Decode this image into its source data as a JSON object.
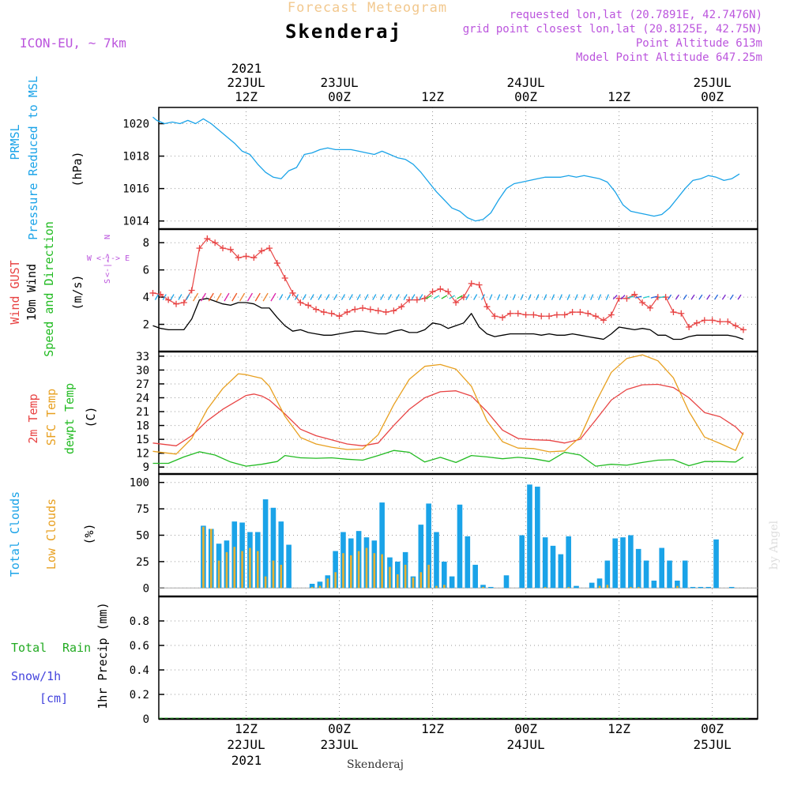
{
  "header": {
    "top_title": "Forecast Meteogram",
    "location": "Skenderaj",
    "model": "ICON-EU, ~ 7km",
    "requested": "requested lon,lat (20.7891E, 42.7476N)",
    "gridpoint": "grid point closest lon,lat (20.8125E, 42.75N)",
    "altitude": "Point Altitude 613m",
    "model_altitude": "Model Point Altitude 647.25m",
    "footer_location": "Skenderaj",
    "watermark": "by Angel"
  },
  "colors": {
    "pressure": "#1aa3e8",
    "gust": "#e84444",
    "wind": "#000000",
    "t2m": "#e84444",
    "sfc": "#e8a020",
    "dew": "#22bb22",
    "total_cloud": "#1aa3e8",
    "low_cloud": "#e8b030",
    "rain": "#22aa22",
    "snow": "#4444dd",
    "meta": "#bb55dd",
    "title": "#f2c88e"
  },
  "time_axis": {
    "top_year": "2021",
    "top_labels": [
      {
        "h": 12,
        "l1": "22JUL",
        "l2": "12Z"
      },
      {
        "h": 24,
        "l1": "23JUL",
        "l2": "00Z"
      },
      {
        "h": 36,
        "l1": "",
        "l2": "12Z"
      },
      {
        "h": 48,
        "l1": "24JUL",
        "l2": "00Z"
      },
      {
        "h": 60,
        "l1": "",
        "l2": "12Z"
      },
      {
        "h": 72,
        "l1": "25JUL",
        "l2": "00Z"
      }
    ],
    "bottom_year": "2021",
    "bottom_labels": [
      {
        "h": 12,
        "l1": "12Z",
        "l2": "22JUL"
      },
      {
        "h": 24,
        "l1": "00Z",
        "l2": "23JUL"
      },
      {
        "h": 36,
        "l1": "12Z",
        "l2": ""
      },
      {
        "h": 48,
        "l1": "00Z",
        "l2": "24JUL"
      },
      {
        "h": 60,
        "l1": "12Z",
        "l2": ""
      },
      {
        "h": 72,
        "l1": "00Z",
        "l2": "25JUL"
      }
    ]
  },
  "chart_data": [
    {
      "type": "line",
      "title": "PRMSL Pressure Reduced to MSL",
      "ylabel": "(hPa)",
      "ylim": [
        1013.5,
        1021
      ],
      "yticks": [
        1014,
        1016,
        1018,
        1020
      ],
      "x_unit": "hours from 22JUL 00Z",
      "series": [
        {
          "name": "PRMSL",
          "x": [
            0,
            0.5,
            1.5,
            2.5,
            3.5,
            4.5,
            5.5,
            6.5,
            7.5,
            8.5,
            9.5,
            10.5,
            11.5,
            12.5,
            13.5,
            14.5,
            15.5,
            16.5,
            17.5,
            18.5,
            19.5,
            20.5,
            21.5,
            22.5,
            23.5,
            24.5,
            25.5,
            26.5,
            27.5,
            28.5,
            29.5,
            30.5,
            31.5,
            32.5,
            33.5,
            34.5,
            35.5,
            36.5,
            37.5,
            38.5,
            39.5,
            40.5,
            41.5,
            42.5,
            43.5,
            44.5,
            45.5,
            46.5,
            47.5,
            48.5,
            49.5,
            50.5,
            51.5,
            52.5,
            53.5,
            54.5,
            55.5,
            56.5,
            57.5,
            58.5,
            59.5,
            60.5,
            61.5,
            62.5,
            63.5,
            64.5,
            65.5,
            66.5,
            67.5,
            68.5,
            69.5,
            70.5,
            71.5,
            72.5,
            73.5,
            74.5,
            75.5
          ],
          "values": [
            1020.4,
            1020.2,
            1020.0,
            1020.1,
            1020.0,
            1020.2,
            1020.0,
            1020.3,
            1020.0,
            1019.6,
            1019.2,
            1018.8,
            1018.3,
            1018.1,
            1017.5,
            1017.0,
            1016.7,
            1016.6,
            1017.1,
            1017.3,
            1018.1,
            1018.2,
            1018.4,
            1018.5,
            1018.4,
            1018.4,
            1018.4,
            1018.3,
            1018.2,
            1018.1,
            1018.3,
            1018.1,
            1017.9,
            1017.8,
            1017.5,
            1017.0,
            1016.4,
            1015.8,
            1015.3,
            1014.8,
            1014.6,
            1014.2,
            1014.0,
            1014.1,
            1014.5,
            1015.3,
            1016.0,
            1016.3,
            1016.4,
            1016.5,
            1016.6,
            1016.7,
            1016.7,
            1016.7,
            1016.8,
            1016.7,
            1016.8,
            1016.7,
            1016.6,
            1016.4,
            1015.8,
            1015.0,
            1014.6,
            1014.5,
            1014.4,
            1014.3,
            1014.4,
            1014.8,
            1015.4,
            1016.0,
            1016.5,
            1016.6,
            1016.8,
            1016.7,
            1016.5,
            1016.6,
            1016.9
          ]
        }
      ]
    },
    {
      "type": "line",
      "title": "Wind GUST, 10m Wind Speed and Direction",
      "ylabel": "(m/s)",
      "ylim": [
        0,
        9
      ],
      "yticks": [
        2,
        4,
        6,
        8
      ],
      "compass_rose": "W <-|-> E, N, S",
      "series": [
        {
          "name": "Wind GUST",
          "x": [
            0,
            1,
            2,
            3,
            4,
            5,
            6,
            7,
            8,
            9,
            10,
            11,
            12,
            13,
            14,
            15,
            16,
            17,
            18,
            19,
            20,
            21,
            22,
            23,
            24,
            25,
            26,
            27,
            28,
            29,
            30,
            31,
            32,
            33,
            34,
            35,
            36,
            37,
            38,
            39,
            40,
            41,
            42,
            43,
            44,
            45,
            46,
            47,
            48,
            49,
            50,
            51,
            52,
            53,
            54,
            55,
            56,
            57,
            58,
            59,
            60,
            61,
            62,
            63,
            64,
            65,
            66,
            67,
            68,
            69,
            70,
            71,
            72,
            73,
            74,
            75,
            76
          ],
          "values": [
            4.3,
            4.2,
            3.8,
            3.5,
            3.6,
            4.5,
            7.6,
            8.3,
            8.0,
            7.6,
            7.5,
            6.9,
            7.0,
            6.9,
            7.4,
            7.6,
            6.5,
            5.4,
            4.3,
            3.6,
            3.4,
            3.1,
            2.9,
            2.8,
            2.6,
            2.9,
            3.1,
            3.2,
            3.1,
            3.0,
            2.9,
            3.0,
            3.3,
            3.8,
            3.8,
            3.9,
            4.4,
            4.6,
            4.4,
            3.6,
            4.0,
            5.0,
            4.9,
            3.3,
            2.6,
            2.5,
            2.8,
            2.8,
            2.7,
            2.7,
            2.6,
            2.6,
            2.7,
            2.7,
            2.9,
            2.9,
            2.8,
            2.6,
            2.3,
            2.7,
            3.9,
            3.9,
            4.2,
            3.6,
            3.2,
            4.0,
            4.0,
            2.9,
            2.8,
            1.8,
            2.1,
            2.3,
            2.3,
            2.2,
            2.2,
            1.9,
            1.6
          ]
        },
        {
          "name": "10m Wind",
          "x": [
            0,
            1,
            2,
            3,
            4,
            5,
            6,
            7,
            8,
            9,
            10,
            11,
            12,
            13,
            14,
            15,
            16,
            17,
            18,
            19,
            20,
            21,
            22,
            23,
            24,
            25,
            26,
            27,
            28,
            29,
            30,
            31,
            32,
            33,
            34,
            35,
            36,
            37,
            38,
            39,
            40,
            41,
            42,
            43,
            44,
            45,
            46,
            47,
            48,
            49,
            50,
            51,
            52,
            53,
            54,
            55,
            56,
            57,
            58,
            59,
            60,
            61,
            62,
            63,
            64,
            65,
            66,
            67,
            68,
            69,
            70,
            71,
            72,
            73,
            74,
            75,
            76
          ],
          "values": [
            1.9,
            1.7,
            1.6,
            1.6,
            1.6,
            2.4,
            3.8,
            3.9,
            3.7,
            3.5,
            3.4,
            3.6,
            3.6,
            3.5,
            3.2,
            3.2,
            2.5,
            1.9,
            1.5,
            1.6,
            1.4,
            1.3,
            1.2,
            1.2,
            1.3,
            1.4,
            1.5,
            1.5,
            1.4,
            1.3,
            1.3,
            1.5,
            1.6,
            1.4,
            1.4,
            1.6,
            2.1,
            2.0,
            1.7,
            1.9,
            2.1,
            2.8,
            1.8,
            1.3,
            1.1,
            1.2,
            1.3,
            1.3,
            1.3,
            1.3,
            1.2,
            1.3,
            1.2,
            1.2,
            1.3,
            1.2,
            1.1,
            1.0,
            0.9,
            1.3,
            1.8,
            1.7,
            1.6,
            1.7,
            1.6,
            1.2,
            1.2,
            0.9,
            0.9,
            1.1,
            1.2,
            1.2,
            1.2,
            1.2,
            1.2,
            1.1,
            0.9
          ]
        }
      ]
    },
    {
      "type": "line",
      "title": "2m Temp, SFC Temp, dewpt Temp",
      "ylabel": "(C)",
      "ylim": [
        7.5,
        34
      ],
      "yticks": [
        9,
        12,
        15,
        18,
        21,
        24,
        27,
        30,
        33
      ],
      "series": [
        {
          "name": "2m Temp",
          "x": [
            0,
            3,
            5,
            7,
            9,
            11,
            12,
            13,
            14,
            15,
            17,
            19,
            21,
            23,
            25,
            27,
            29,
            31,
            33,
            35,
            37,
            39,
            41,
            43,
            45,
            47,
            49,
            51,
            53,
            55,
            57,
            59,
            61,
            63,
            65,
            67,
            69,
            71,
            73,
            75,
            76
          ],
          "values": [
            14.2,
            13.6,
            15.8,
            19.0,
            21.5,
            23.5,
            24.5,
            24.8,
            24.4,
            23.5,
            20.5,
            17.2,
            15.8,
            14.9,
            14.0,
            13.6,
            14.2,
            18.0,
            21.5,
            24.0,
            25.3,
            25.5,
            24.4,
            21.0,
            17.0,
            15.2,
            14.9,
            14.8,
            14.2,
            15.0,
            19.2,
            23.5,
            25.8,
            26.8,
            26.9,
            26.2,
            24.0,
            20.8,
            19.9,
            17.7,
            16.0
          ]
        },
        {
          "name": "SFC Temp",
          "x": [
            0,
            3,
            5,
            7,
            9,
            11,
            12,
            13,
            14,
            15,
            17,
            19,
            21,
            23,
            25,
            27,
            29,
            31,
            33,
            35,
            37,
            39,
            41,
            43,
            45,
            47,
            49,
            51,
            53,
            55,
            57,
            59,
            61,
            63,
            65,
            67,
            69,
            71,
            73,
            75,
            76
          ],
          "values": [
            12.4,
            11.8,
            15.2,
            21.5,
            26.0,
            29.2,
            29.0,
            28.6,
            28.2,
            26.5,
            20.0,
            15.4,
            14.0,
            13.3,
            12.8,
            12.9,
            16.0,
            22.5,
            28.0,
            30.8,
            31.2,
            30.2,
            26.5,
            19.0,
            14.5,
            13.1,
            13.0,
            12.3,
            12.5,
            15.5,
            23.0,
            29.5,
            32.5,
            33.3,
            32.0,
            28.3,
            21.0,
            15.5,
            14.1,
            12.6,
            16.5
          ]
        },
        {
          "name": "dewpt Temp",
          "x": [
            0,
            2,
            4,
            6,
            8,
            10,
            12,
            14,
            16,
            17,
            19,
            21,
            23,
            25,
            27,
            29,
            31,
            33,
            35,
            37,
            39,
            41,
            43,
            45,
            47,
            49,
            51,
            53,
            55,
            57,
            59,
            61,
            63,
            65,
            67,
            69,
            71,
            73,
            75,
            76
          ],
          "values": [
            9.8,
            9.8,
            11.2,
            12.3,
            11.6,
            10.1,
            9.2,
            9.6,
            10.2,
            11.5,
            11.0,
            10.9,
            11.0,
            10.7,
            10.5,
            11.5,
            12.6,
            12.2,
            10.1,
            11.1,
            10.0,
            11.5,
            11.2,
            10.8,
            11.1,
            10.8,
            10.2,
            12.2,
            11.6,
            9.2,
            9.6,
            9.4,
            10.0,
            10.5,
            10.6,
            9.3,
            10.2,
            10.2,
            10.1,
            11.2
          ]
        }
      ]
    },
    {
      "type": "bar",
      "title": "Total Clouds, Low Clouds",
      "ylabel": "(%)",
      "ylim": [
        -8,
        108
      ],
      "yticks": [
        0,
        25,
        50,
        75,
        100
      ],
      "x": [
        6,
        7,
        8,
        9,
        10,
        11,
        12,
        13,
        14,
        15,
        16,
        17,
        20,
        21,
        22,
        23,
        24,
        25,
        26,
        27,
        28,
        29,
        30,
        31,
        32,
        33,
        34,
        35,
        36,
        37,
        38,
        39,
        40,
        41,
        42,
        43,
        45,
        47,
        48,
        49,
        50,
        51,
        52,
        53,
        54,
        56,
        57,
        58,
        59,
        60,
        61,
        62,
        63,
        64,
        65,
        66,
        67,
        68,
        69,
        70,
        71,
        72,
        74
      ],
      "series": [
        {
          "name": "Total Clouds",
          "values": [
            59,
            56,
            42,
            45,
            63,
            62,
            53,
            53,
            84,
            76,
            63,
            41,
            4,
            6,
            12,
            35,
            53,
            47,
            54,
            48,
            45,
            81,
            29,
            25,
            34,
            11,
            60,
            80,
            53,
            25,
            11,
            79,
            49,
            22,
            3,
            1,
            12,
            50,
            98,
            96,
            48,
            40,
            32,
            49,
            2,
            5,
            9,
            26,
            47,
            48,
            50,
            37,
            26,
            7,
            38,
            26,
            7,
            26,
            1,
            1,
            1,
            46,
            1
          ]
        },
        {
          "name": "Low Clouds",
          "values": [
            58,
            56,
            26,
            34,
            39,
            35,
            38,
            35,
            11,
            26,
            22,
            0,
            1,
            2,
            9,
            15,
            33,
            31,
            35,
            38,
            33,
            32,
            20,
            13,
            22,
            10,
            15,
            22,
            2,
            3,
            0,
            0,
            0,
            0,
            1,
            0,
            0,
            0,
            0,
            0,
            1,
            0,
            0,
            1,
            0,
            0,
            2,
            3,
            0,
            0,
            1,
            1,
            0,
            0,
            0,
            0,
            2,
            0,
            0,
            0,
            0,
            0,
            0
          ]
        }
      ]
    },
    {
      "type": "line",
      "title": "Total Rain, Snow/1h [cm]",
      "ylabel": "1hr Precip (mm)",
      "ylim": [
        0,
        1
      ],
      "yticks": [
        0,
        0.2,
        0.4,
        0.6,
        0.8
      ],
      "series": [
        {
          "name": "Total Rain",
          "x": [
            0,
            76
          ],
          "values": [
            0,
            0
          ]
        }
      ]
    }
  ],
  "labels": {
    "p1": [
      "PRMSL",
      "Pressure Reduced to MSL",
      "(hPa)"
    ],
    "p2": [
      "Wind GUST",
      "10m Wind",
      "Speed and Direction",
      "(m/s)"
    ],
    "p3": [
      "2m Temp",
      "SFC Temp",
      "dewpt Temp",
      "(C)"
    ],
    "p4": [
      "Total Clouds",
      "Low Clouds",
      "(%)"
    ],
    "p5": [
      "Total",
      "Rain",
      "Snow/1h",
      "[cm]",
      "1hr Precip (mm)"
    ],
    "rose": [
      "N",
      "S",
      "W <-|-> E"
    ]
  }
}
